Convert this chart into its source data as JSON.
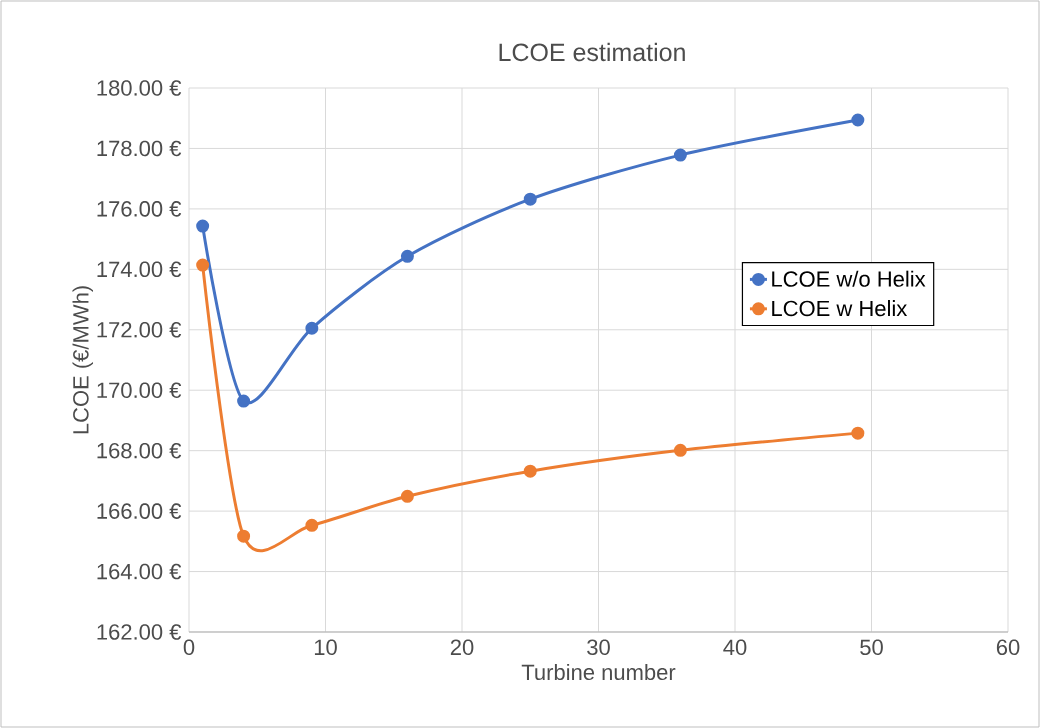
{
  "chart_data": {
    "type": "line",
    "title": "LCOE estimation",
    "xlabel": "Turbine number",
    "ylabel": "LCOE  (€/MWh)",
    "x": [
      1,
      4,
      9,
      16,
      25,
      36,
      49
    ],
    "series": [
      {
        "name": "LCOE w/o Helix",
        "color": "#4472c4",
        "values": [
          175.43,
          169.64,
          172.05,
          174.43,
          176.32,
          177.78,
          178.94
        ]
      },
      {
        "name": "LCOE w Helix",
        "color": "#ed7d31",
        "values": [
          174.14,
          165.17,
          165.53,
          166.49,
          167.32,
          168.01,
          168.58
        ]
      }
    ],
    "xlim": [
      0,
      60
    ],
    "xticks": [
      0,
      10,
      20,
      30,
      40,
      50,
      60
    ],
    "ylim": [
      162,
      180
    ],
    "yticks": [
      {
        "value": 162,
        "label": "162.00 €"
      },
      {
        "value": 164,
        "label": "164.00 €"
      },
      {
        "value": 166,
        "label": "166.00 €"
      },
      {
        "value": 168,
        "label": "168.00 €"
      },
      {
        "value": 170,
        "label": "170.00 €"
      },
      {
        "value": 172,
        "label": "172.00 €"
      },
      {
        "value": 174,
        "label": "174.00 €"
      },
      {
        "value": 176,
        "label": "176.00 €"
      },
      {
        "value": 178,
        "label": "178.00 €"
      },
      {
        "value": 180,
        "label": "180.00 €"
      }
    ],
    "grid": true,
    "legend": "right",
    "marker": "circle"
  }
}
